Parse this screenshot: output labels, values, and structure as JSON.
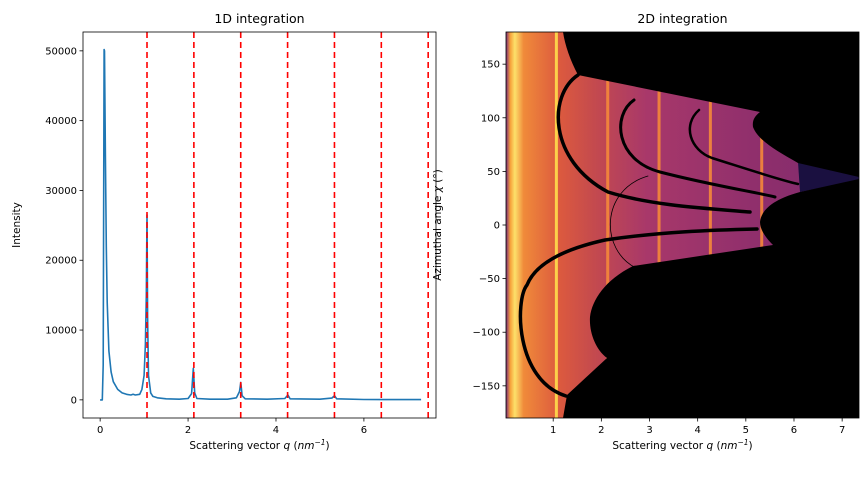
{
  "chart_data": [
    {
      "type": "line",
      "title": "1D integration",
      "xlabel": {
        "prefix": "Scattering vector ",
        "var": "q",
        "unit": "nm",
        "exp": "−1"
      },
      "ylabel": "Intensity",
      "xlim": [
        -0.39,
        7.64
      ],
      "ylim": [
        -2600,
        52700
      ],
      "xticks": [
        0,
        2,
        4,
        6
      ],
      "yticks": [
        0,
        10000,
        20000,
        30000,
        40000,
        50000
      ],
      "grid": false,
      "series": [
        {
          "color": "#1f77b4",
          "x": [
            0.0,
            0.05,
            0.07,
            0.08,
            0.09,
            0.1,
            0.12,
            0.14,
            0.16,
            0.2,
            0.25,
            0.3,
            0.4,
            0.5,
            0.6,
            0.7,
            0.75,
            0.8,
            0.9,
            0.95,
            1.0,
            1.03,
            1.05,
            1.065,
            1.08,
            1.1,
            1.15,
            1.2,
            1.3,
            1.5,
            1.8,
            2.0,
            2.08,
            2.12,
            2.15,
            2.2,
            2.5,
            2.9,
            3.1,
            3.17,
            3.2,
            3.23,
            3.3,
            3.8,
            4.2,
            4.27,
            4.32,
            5.0,
            5.27,
            5.33,
            5.38,
            6.0,
            7.3
          ],
          "y": [
            0,
            0,
            5000,
            30000,
            50200,
            50000,
            35000,
            22000,
            14000,
            7000,
            4000,
            2600,
            1500,
            1000,
            800,
            700,
            800,
            700,
            800,
            1500,
            3500,
            8000,
            15000,
            26500,
            12000,
            3500,
            1000,
            500,
            300,
            150,
            100,
            200,
            900,
            4500,
            1000,
            200,
            100,
            100,
            300,
            1200,
            2500,
            600,
            150,
            100,
            200,
            700,
            150,
            100,
            250,
            600,
            150,
            50,
            30
          ]
        }
      ],
      "vlines": {
        "color": "#ff0000",
        "style": "dashed",
        "x": [
          1.066,
          2.132,
          3.198,
          4.264,
          5.33,
          6.396,
          7.462
        ]
      }
    },
    {
      "type": "heatmap",
      "title": "2D integration",
      "xlabel": {
        "prefix": "Scattering vector ",
        "var": "q",
        "unit": "nm",
        "exp": "−1"
      },
      "ylabel": {
        "prefix": "Azimuthal angle ",
        "var": "χ",
        "unit": "(°)"
      },
      "xlim": [
        0.02,
        7.35
      ],
      "ylim": [
        -180,
        180
      ],
      "xticks": [
        1,
        2,
        3,
        4,
        5,
        6,
        7
      ],
      "yticks": [
        -150,
        -100,
        -50,
        0,
        50,
        100,
        150
      ],
      "colormap": "inferno",
      "ring_q": [
        1.066,
        2.132,
        3.198,
        4.264,
        5.33
      ],
      "masked_color": "#000000"
    }
  ]
}
